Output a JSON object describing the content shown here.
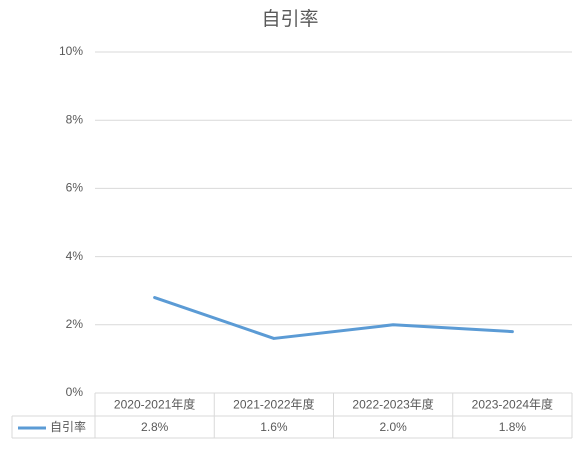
{
  "chart_data": {
    "type": "line",
    "title": "自引率",
    "categories": [
      "2020-2021年度",
      "2021-2022年度",
      "2022-2023年度",
      "2023-2024年度"
    ],
    "series": [
      {
        "name": "自引率",
        "color": "#5b9bd5",
        "values": [
          2.8,
          1.6,
          2.0,
          1.8
        ],
        "value_labels": [
          "2.8%",
          "1.6%",
          "2.0%",
          "1.8%"
        ]
      }
    ],
    "ylim": [
      0,
      10
    ],
    "yticks": [
      {
        "value": 0,
        "label": "0%"
      },
      {
        "value": 2,
        "label": "2%"
      },
      {
        "value": 4,
        "label": "4%"
      },
      {
        "value": 6,
        "label": "6%"
      },
      {
        "value": 8,
        "label": "8%"
      },
      {
        "value": 10,
        "label": "10%"
      }
    ],
    "grid": true
  }
}
